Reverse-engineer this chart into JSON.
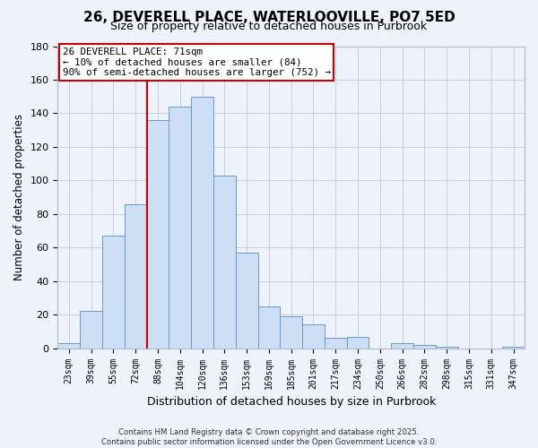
{
  "title": "26, DEVERELL PLACE, WATERLOOVILLE, PO7 5ED",
  "subtitle": "Size of property relative to detached houses in Purbrook",
  "xlabel": "Distribution of detached houses by size in Purbrook",
  "ylabel": "Number of detached properties",
  "bar_labels": [
    "23sqm",
    "39sqm",
    "55sqm",
    "72sqm",
    "88sqm",
    "104sqm",
    "120sqm",
    "136sqm",
    "153sqm",
    "169sqm",
    "185sqm",
    "201sqm",
    "217sqm",
    "234sqm",
    "250sqm",
    "266sqm",
    "282sqm",
    "298sqm",
    "315sqm",
    "331sqm",
    "347sqm"
  ],
  "bar_values": [
    3,
    22,
    67,
    86,
    136,
    144,
    150,
    103,
    57,
    25,
    19,
    14,
    6,
    7,
    0,
    3,
    2,
    1,
    0,
    0,
    1
  ],
  "bar_color": "#ccdff5",
  "bar_edge_color": "#6699cc",
  "grid_color": "#ccccdd",
  "background_color": "#eef2fa",
  "annotation_line1": "26 DEVERELL PLACE: 71sqm",
  "annotation_line2": "← 10% of detached houses are smaller (84)",
  "annotation_line3": "90% of semi-detached houses are larger (752) →",
  "red_line_x": 3.5,
  "ylim": [
    0,
    180
  ],
  "yticks": [
    0,
    20,
    40,
    60,
    80,
    100,
    120,
    140,
    160,
    180
  ],
  "footer_line1": "Contains HM Land Registry data © Crown copyright and database right 2025.",
  "footer_line2": "Contains public sector information licensed under the Open Government Licence v3.0."
}
